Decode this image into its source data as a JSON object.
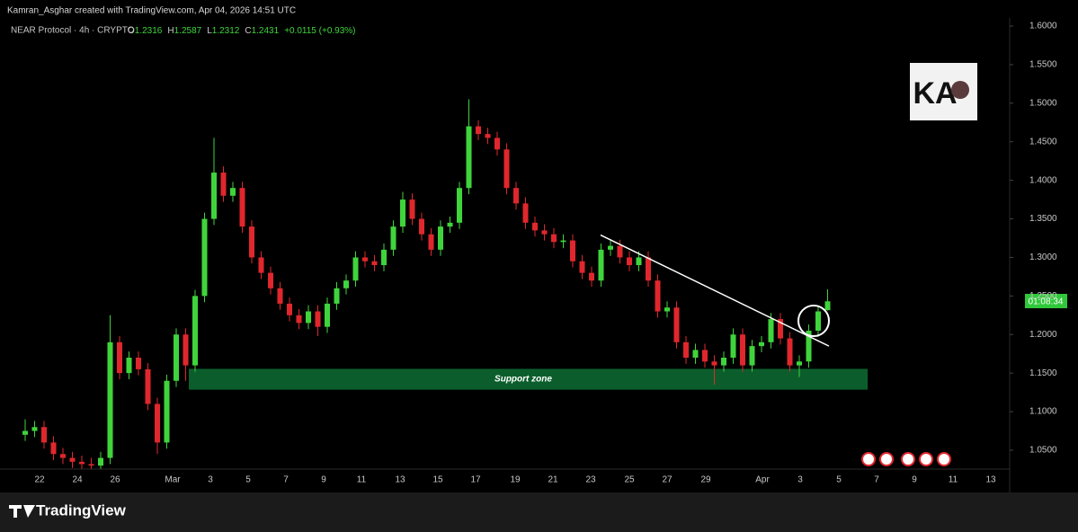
{
  "chart_data": {
    "type": "candlestick",
    "credit": "Kamran_Asghar created with TradingView.com, Apr 04, 2026 14:51 UTC",
    "symbol": "NEAR Protocol · 4h · CRYPTO",
    "ohlc": [
      {
        "label": "O",
        "value": "1.2316"
      },
      {
        "label": "H",
        "value": "1.2587"
      },
      {
        "label": "L",
        "value": "1.2312"
      },
      {
        "label": "C",
        "value": "1.2431"
      }
    ],
    "change": "+0.0115 (+0.93%)",
    "countdown": "01:08:34",
    "logo_text": "KA",
    "brand": "TradingView",
    "up_color": "#3fd43c",
    "down_color": "#e0272d",
    "candles": [
      [
        1.07,
        1.09,
        1.062,
        1.075
      ],
      [
        1.075,
        1.088,
        1.067,
        1.08
      ],
      [
        1.08,
        1.088,
        1.052,
        1.06
      ],
      [
        1.06,
        1.068,
        1.037,
        1.045
      ],
      [
        1.045,
        1.053,
        1.032,
        1.04
      ],
      [
        1.04,
        1.048,
        1.027,
        1.035
      ],
      [
        1.035,
        1.043,
        1.026,
        1.032
      ],
      [
        1.032,
        1.04,
        1.026,
        1.03
      ],
      [
        1.03,
        1.048,
        1.026,
        1.04
      ],
      [
        1.04,
        1.225,
        1.032,
        1.19
      ],
      [
        1.19,
        1.198,
        1.142,
        1.15
      ],
      [
        1.15,
        1.178,
        1.142,
        1.17
      ],
      [
        1.17,
        1.178,
        1.147,
        1.155
      ],
      [
        1.155,
        1.163,
        1.102,
        1.11
      ],
      [
        1.11,
        1.118,
        1.045,
        1.06
      ],
      [
        1.06,
        1.148,
        1.052,
        1.14
      ],
      [
        1.14,
        1.208,
        1.132,
        1.2
      ],
      [
        1.2,
        1.208,
        1.14,
        1.16
      ],
      [
        1.16,
        1.258,
        1.152,
        1.25
      ],
      [
        1.25,
        1.358,
        1.242,
        1.35
      ],
      [
        1.35,
        1.455,
        1.342,
        1.41
      ],
      [
        1.41,
        1.418,
        1.372,
        1.38
      ],
      [
        1.38,
        1.398,
        1.372,
        1.39
      ],
      [
        1.39,
        1.398,
        1.332,
        1.34
      ],
      [
        1.34,
        1.348,
        1.292,
        1.3
      ],
      [
        1.3,
        1.308,
        1.272,
        1.28
      ],
      [
        1.28,
        1.288,
        1.252,
        1.26
      ],
      [
        1.26,
        1.268,
        1.232,
        1.24
      ],
      [
        1.24,
        1.248,
        1.217,
        1.225
      ],
      [
        1.225,
        1.233,
        1.207,
        1.215
      ],
      [
        1.215,
        1.238,
        1.207,
        1.23
      ],
      [
        1.23,
        1.238,
        1.198,
        1.21
      ],
      [
        1.21,
        1.248,
        1.202,
        1.24
      ],
      [
        1.24,
        1.268,
        1.232,
        1.26
      ],
      [
        1.26,
        1.278,
        1.252,
        1.27
      ],
      [
        1.27,
        1.308,
        1.262,
        1.3
      ],
      [
        1.3,
        1.308,
        1.287,
        1.295
      ],
      [
        1.295,
        1.303,
        1.282,
        1.29
      ],
      [
        1.29,
        1.318,
        1.282,
        1.31
      ],
      [
        1.31,
        1.348,
        1.302,
        1.34
      ],
      [
        1.34,
        1.385,
        1.332,
        1.375
      ],
      [
        1.375,
        1.383,
        1.342,
        1.35
      ],
      [
        1.35,
        1.358,
        1.322,
        1.33
      ],
      [
        1.33,
        1.338,
        1.302,
        1.31
      ],
      [
        1.31,
        1.348,
        1.302,
        1.34
      ],
      [
        1.34,
        1.353,
        1.332,
        1.345
      ],
      [
        1.345,
        1.398,
        1.337,
        1.39
      ],
      [
        1.39,
        1.505,
        1.382,
        1.47
      ],
      [
        1.47,
        1.478,
        1.452,
        1.46
      ],
      [
        1.46,
        1.468,
        1.447,
        1.455
      ],
      [
        1.455,
        1.463,
        1.432,
        1.44
      ],
      [
        1.44,
        1.448,
        1.382,
        1.39
      ],
      [
        1.39,
        1.398,
        1.362,
        1.37
      ],
      [
        1.37,
        1.378,
        1.337,
        1.345
      ],
      [
        1.345,
        1.353,
        1.327,
        1.335
      ],
      [
        1.335,
        1.343,
        1.322,
        1.33
      ],
      [
        1.33,
        1.338,
        1.312,
        1.32
      ],
      [
        1.32,
        1.33,
        1.312,
        1.322
      ],
      [
        1.322,
        1.33,
        1.287,
        1.295
      ],
      [
        1.295,
        1.303,
        1.272,
        1.28
      ],
      [
        1.28,
        1.288,
        1.262,
        1.27
      ],
      [
        1.27,
        1.318,
        1.262,
        1.31
      ],
      [
        1.31,
        1.323,
        1.302,
        1.315
      ],
      [
        1.315,
        1.323,
        1.292,
        1.3
      ],
      [
        1.3,
        1.308,
        1.282,
        1.29
      ],
      [
        1.29,
        1.308,
        1.282,
        1.3
      ],
      [
        1.3,
        1.308,
        1.262,
        1.27
      ],
      [
        1.27,
        1.278,
        1.222,
        1.23
      ],
      [
        1.23,
        1.243,
        1.222,
        1.235
      ],
      [
        1.235,
        1.243,
        1.182,
        1.19
      ],
      [
        1.19,
        1.198,
        1.162,
        1.17
      ],
      [
        1.17,
        1.188,
        1.162,
        1.18
      ],
      [
        1.18,
        1.188,
        1.157,
        1.165
      ],
      [
        1.165,
        1.173,
        1.135,
        1.16
      ],
      [
        1.16,
        1.178,
        1.152,
        1.17
      ],
      [
        1.17,
        1.208,
        1.162,
        1.2
      ],
      [
        1.2,
        1.208,
        1.152,
        1.16
      ],
      [
        1.16,
        1.193,
        1.152,
        1.185
      ],
      [
        1.185,
        1.198,
        1.177,
        1.19
      ],
      [
        1.19,
        1.228,
        1.182,
        1.22
      ],
      [
        1.22,
        1.228,
        1.187,
        1.195
      ],
      [
        1.195,
        1.203,
        1.152,
        1.16
      ],
      [
        1.16,
        1.173,
        1.145,
        1.165
      ],
      [
        1.165,
        1.213,
        1.157,
        1.205
      ],
      [
        1.205,
        1.238,
        1.197,
        1.23
      ],
      [
        1.2316,
        1.2587,
        1.2312,
        1.2431
      ]
    ],
    "ylim": [
      1.0255,
      1.6338
    ],
    "yticks": [
      {
        "value": 1.05,
        "label": "1.0500"
      },
      {
        "value": 1.1,
        "label": "1.1000"
      },
      {
        "value": 1.15,
        "label": "1.1500"
      },
      {
        "value": 1.2,
        "label": "1.2000"
      },
      {
        "value": 1.25,
        "label": "1.2500"
      },
      {
        "value": 1.3,
        "label": "1.3000"
      },
      {
        "value": 1.35,
        "label": "1.3500"
      },
      {
        "value": 1.4,
        "label": "1.4000"
      },
      {
        "value": 1.45,
        "label": "1.4500"
      },
      {
        "value": 1.5,
        "label": "1.5000"
      },
      {
        "value": 1.55,
        "label": "1.5500"
      },
      {
        "value": 1.6,
        "label": "1.6000"
      }
    ],
    "xticks": [
      "22",
      "24",
      "26",
      "Mar",
      "3",
      "5",
      "7",
      "9",
      "11",
      "13",
      "15",
      "17",
      "19",
      "21",
      "23",
      "25",
      "27",
      "29",
      "Apr",
      "3",
      "5",
      "7",
      "9",
      "11",
      "13"
    ],
    "grid": false,
    "support_zone": {
      "label": "Support zone",
      "low": 1.1285,
      "high": 1.1555,
      "color": "#0b5e2c"
    },
    "trendline": {
      "start": 1.329,
      "end": 1.185,
      "color": "#ffffff"
    }
  }
}
